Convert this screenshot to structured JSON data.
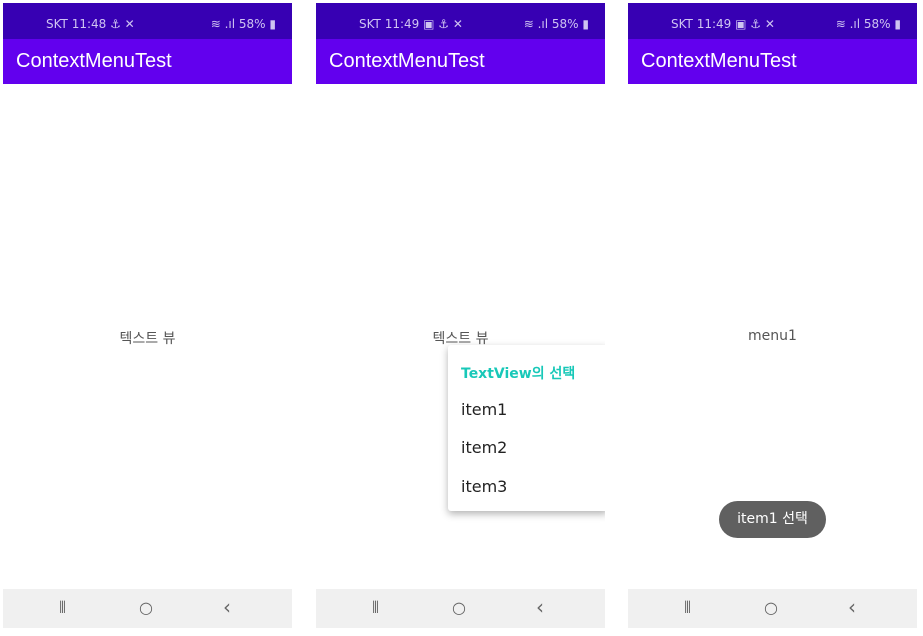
{
  "app_title": "ContextMenuTest",
  "colors": {
    "status_bar": "#3700b3",
    "app_bar": "#6200ee",
    "menu_title": "#18c8b8",
    "toast": "#606060"
  },
  "screens": [
    {
      "status": {
        "left": "SKT 11:48 ⚓ ✕",
        "right": "≋ .ıl 58% ▮"
      },
      "center_text": "텍스트 뷰"
    },
    {
      "status": {
        "left": "SKT 11:49 ▣ ⚓ ✕",
        "right": "≋ .ıl 58% ▮"
      },
      "center_text": "텍스트 뷰",
      "context_menu": {
        "title": "TextView의 선택",
        "items": [
          "item1",
          "item2",
          "item3"
        ]
      }
    },
    {
      "status": {
        "left": "SKT 11:49 ▣ ⚓ ✕",
        "right": "≋ .ıl 58% ▮"
      },
      "center_text": "menu1",
      "toast": "item1 선택"
    }
  ],
  "nav": {
    "recents": "⦀",
    "home": "○",
    "back": "‹"
  }
}
